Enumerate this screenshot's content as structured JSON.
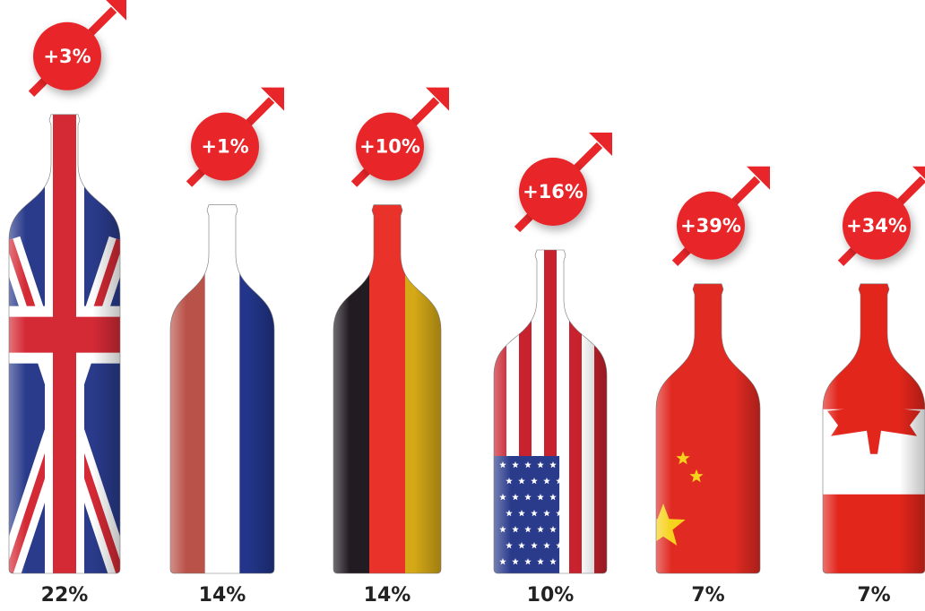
{
  "chart_data": {
    "type": "bottle",
    "series": [
      {
        "values": [
          22,
          14,
          14,
          10,
          7,
          7
        ],
        "value_labels": [
          "22%",
          "14%",
          "14%",
          "10%",
          "7%",
          "7%"
        ]
      },
      {
        "values": [
          3,
          1,
          10,
          16,
          39,
          34
        ],
        "value_labels": [
          "+3%",
          "+1%",
          "+10%",
          "+16%",
          "+39%",
          "+34%"
        ],
        "color": "#e8262a"
      }
    ]
  }
}
